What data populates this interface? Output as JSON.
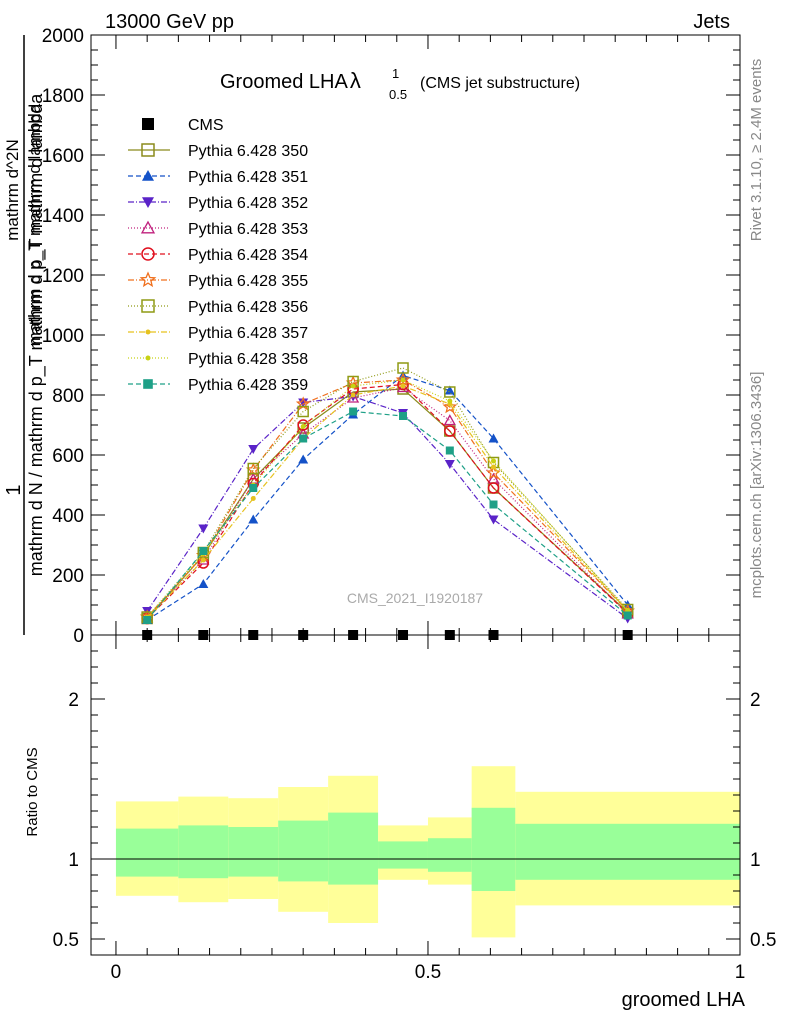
{
  "header": {
    "left": "13000 GeV pp",
    "right": "Jets"
  },
  "plot": {
    "title_main": "Groomed LHA",
    "title_lambda": "λ",
    "title_sup": "1",
    "title_sub": "0.5",
    "title_suffix": "(CMS jet substructure)",
    "analysis_id": "CMS_2021_I1920187",
    "ylabel_top_frac_num": "1",
    "ylabel_top_frac_den": "mathrm d N / mathrm d p_T mathrm d p_T mathrm d lambda",
    "ylabel_top_num": "mathrm d^2N",
    "ylabel_top_den": "mathrm d p_T mathrm d lambda",
    "ylabel_bottom": "Ratio to CMS",
    "xlabel": "groomed LHA",
    "side_top": "Rivet 3.1.10, ≥ 2.4M events",
    "side_bottom": "mcplots.cern.ch [arXiv:1306.3436]"
  },
  "chart_data": {
    "type": "line",
    "x": [
      0.05,
      0.14,
      0.22,
      0.3,
      0.38,
      0.46,
      0.535,
      0.605,
      0.82
    ],
    "xlim": [
      -0.04,
      1.0
    ],
    "ylim": [
      0,
      2000
    ],
    "xticks": [
      "0",
      "0.5",
      "1"
    ],
    "yticks": [
      "0",
      "200",
      "400",
      "600",
      "800",
      "1000",
      "1200",
      "1400",
      "1600",
      "1800",
      "2000"
    ],
    "ratio_ylim": [
      0.4,
      2.4
    ],
    "ratio_yticks": [
      "0.5",
      "1",
      "2"
    ],
    "cms": [
      0,
      0,
      0,
      0,
      0,
      0,
      0,
      0,
      0
    ],
    "series": [
      {
        "name": "Pythia 6.428 350",
        "color": "#8b8b1c",
        "marker": "square-open",
        "dash": "",
        "values": [
          55,
          265,
          520,
          690,
          810,
          820,
          680,
          490,
          75
        ]
      },
      {
        "name": "Pythia 6.428 351",
        "color": "#1452c8",
        "marker": "triangle-up",
        "dash": "5,3",
        "values": [
          50,
          170,
          385,
          585,
          735,
          865,
          815,
          655,
          100
        ]
      },
      {
        "name": "Pythia 6.428 352",
        "color": "#5a23c8",
        "marker": "triangle-down",
        "dash": "6,2,1,2",
        "values": [
          80,
          355,
          620,
          775,
          795,
          740,
          570,
          385,
          55
        ]
      },
      {
        "name": "Pythia 6.428 353",
        "color": "#c0207d",
        "marker": "triangle-open",
        "dash": "1,2",
        "values": [
          58,
          250,
          520,
          670,
          790,
          825,
          715,
          520,
          70
        ]
      },
      {
        "name": "Pythia 6.428 354",
        "color": "#e0101e",
        "marker": "circle-open",
        "dash": "5,3",
        "values": [
          55,
          240,
          505,
          700,
          820,
          835,
          680,
          490,
          72
        ]
      },
      {
        "name": "Pythia 6.428 355",
        "color": "#f0701e",
        "marker": "star-open",
        "dash": "6,2,1,2",
        "values": [
          60,
          265,
          550,
          770,
          840,
          850,
          760,
          540,
          80
        ]
      },
      {
        "name": "Pythia 6.428 356",
        "color": "#8f9a14",
        "marker": "square-open",
        "dash": "1,2",
        "values": [
          60,
          275,
          555,
          745,
          845,
          890,
          810,
          575,
          85
        ]
      },
      {
        "name": "Pythia 6.428 357",
        "color": "#e6c21e",
        "marker": "dot",
        "dash": "6,2,1,2",
        "values": [
          55,
          250,
          455,
          655,
          800,
          830,
          770,
          560,
          80
        ]
      },
      {
        "name": "Pythia 6.428 358",
        "color": "#c8d214",
        "marker": "dot",
        "dash": "1,2",
        "values": [
          60,
          270,
          500,
          695,
          830,
          850,
          780,
          580,
          82
        ]
      },
      {
        "name": "Pythia 6.428 359",
        "color": "#1ea087",
        "marker": "square",
        "dash": "5,3",
        "values": [
          50,
          280,
          490,
          655,
          745,
          730,
          615,
          435,
          65
        ]
      }
    ],
    "ratio_bands": [
      {
        "x0": 0.0,
        "x1": 0.1,
        "inner": [
          0.89,
          1.19
        ],
        "outer": [
          0.77,
          1.36
        ]
      },
      {
        "x0": 0.1,
        "x1": 0.18,
        "inner": [
          0.88,
          1.21
        ],
        "outer": [
          0.73,
          1.39
        ]
      },
      {
        "x0": 0.18,
        "x1": 0.26,
        "inner": [
          0.89,
          1.2
        ],
        "outer": [
          0.75,
          1.38
        ]
      },
      {
        "x0": 0.26,
        "x1": 0.34,
        "inner": [
          0.86,
          1.24
        ],
        "outer": [
          0.67,
          1.45
        ]
      },
      {
        "x0": 0.34,
        "x1": 0.42,
        "inner": [
          0.84,
          1.29
        ],
        "outer": [
          0.6,
          1.52
        ]
      },
      {
        "x0": 0.42,
        "x1": 0.5,
        "inner": [
          0.94,
          1.11
        ],
        "outer": [
          0.87,
          1.21
        ]
      },
      {
        "x0": 0.5,
        "x1": 0.57,
        "inner": [
          0.92,
          1.13
        ],
        "outer": [
          0.84,
          1.26
        ]
      },
      {
        "x0": 0.57,
        "x1": 0.64,
        "inner": [
          0.8,
          1.32
        ],
        "outer": [
          0.51,
          1.58
        ]
      },
      {
        "x0": 0.64,
        "x1": 1.0,
        "inner": [
          0.87,
          1.22
        ],
        "outer": [
          0.71,
          1.42
        ]
      }
    ],
    "colors": {
      "inner_band": "#99ff99",
      "outer_band": "#ffff99"
    },
    "grid": false,
    "legend_position": "top-left"
  }
}
